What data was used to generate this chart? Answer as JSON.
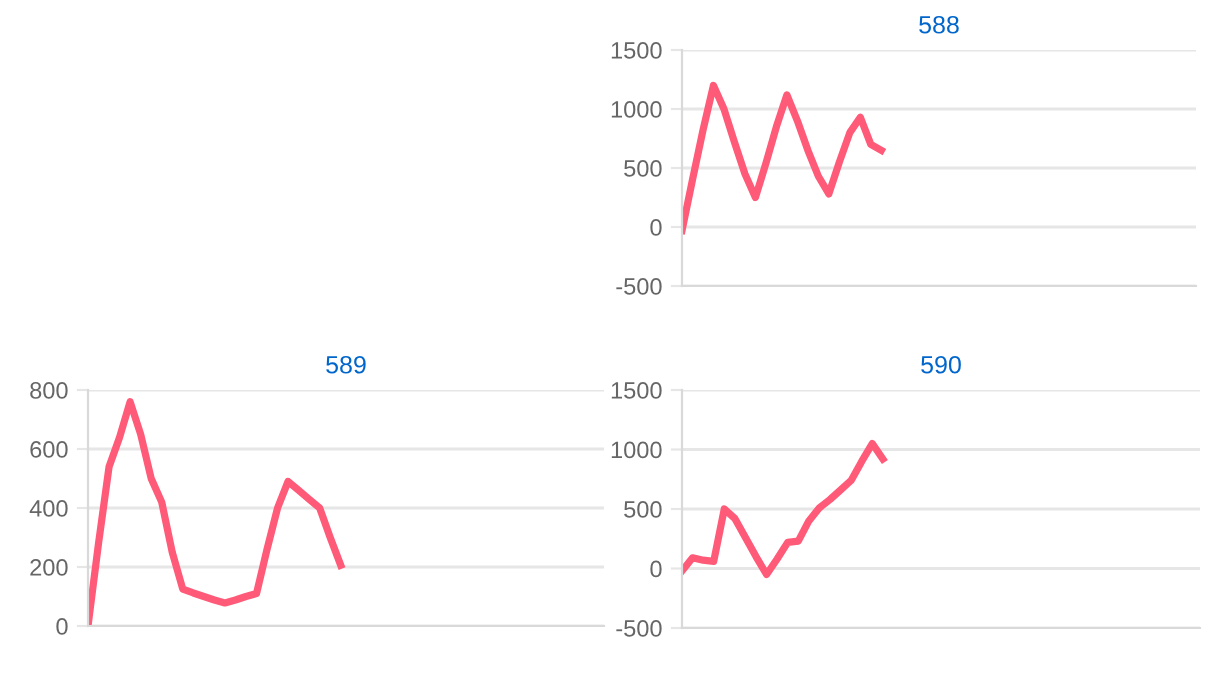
{
  "chart_data": [
    {
      "type": "line",
      "title": "588",
      "categories": [
        null,
        null,
        null,
        null,
        null,
        null,
        null,
        null,
        null,
        null,
        null,
        null,
        null,
        null,
        null,
        null,
        null,
        null,
        null,
        null,
        null,
        null,
        null,
        null,
        null,
        null,
        null,
        null,
        null,
        null,
        null,
        null,
        null,
        null,
        null,
        null,
        null,
        null,
        null,
        null,
        null,
        null,
        null,
        null,
        null,
        null,
        null,
        null,
        null,
        null
      ],
      "series": [
        {
          "color": "#ff5a78",
          "values": [
            -30,
            400,
            820,
            1200,
            1000,
            720,
            450,
            250,
            540,
            850,
            1120,
            900,
            650,
            430,
            280,
            550,
            800,
            930,
            700,
            650,
            null,
            null,
            null,
            null,
            null,
            null,
            null,
            null,
            null,
            null,
            null,
            null,
            null,
            null,
            null,
            null,
            null,
            null,
            null,
            null,
            null,
            null,
            null,
            null,
            null,
            null,
            null,
            null,
            null,
            null
          ]
        }
      ],
      "ylim": [
        -500,
        1500
      ],
      "yticks": [
        -500,
        0,
        500,
        1000,
        1500
      ],
      "grid": "y",
      "marker": "none",
      "line_style": "solid",
      "tick_labels": "y"
    },
    {
      "type": "line",
      "title": "589",
      "categories": [
        null,
        null,
        null,
        null,
        null,
        null,
        null,
        null,
        null,
        null,
        null,
        null,
        null,
        null,
        null,
        null,
        null,
        null,
        null,
        null,
        null,
        null,
        null,
        null,
        null,
        null,
        null,
        null,
        null,
        null,
        null,
        null,
        null,
        null,
        null,
        null,
        null,
        null,
        null,
        null,
        null,
        null,
        null,
        null,
        null,
        null,
        null,
        null,
        null,
        null
      ],
      "series": [
        {
          "color": "#ff5a78",
          "values": [
            0,
            280,
            540,
            640,
            760,
            650,
            500,
            420,
            250,
            125,
            112,
            100,
            88,
            78,
            88,
            100,
            110,
            260,
            400,
            490,
            460,
            430,
            400,
            300,
            206,
            null,
            null,
            null,
            null,
            null,
            null,
            null,
            null,
            null,
            null,
            null,
            null,
            null,
            null,
            null,
            null,
            null,
            null,
            null,
            null,
            null,
            null,
            null,
            null,
            null
          ]
        }
      ],
      "ylim": [
        0,
        800
      ],
      "yticks": [
        0,
        200,
        400,
        600,
        800
      ],
      "grid": "y",
      "marker": "none",
      "line_style": "solid",
      "tick_labels": "y"
    },
    {
      "type": "line",
      "title": "590",
      "categories": [
        null,
        null,
        null,
        null,
        null,
        null,
        null,
        null,
        null,
        null,
        null,
        null,
        null,
        null,
        null,
        null,
        null,
        null,
        null,
        null,
        null,
        null,
        null,
        null,
        null,
        null,
        null,
        null,
        null,
        null,
        null,
        null,
        null,
        null,
        null,
        null,
        null,
        null,
        null,
        null,
        null,
        null,
        null,
        null,
        null,
        null,
        null,
        null,
        null,
        null
      ],
      "series": [
        {
          "color": "#ff5a78",
          "values": [
            -20,
            90,
            70,
            60,
            500,
            420,
            260,
            100,
            -50,
            80,
            220,
            230,
            400,
            510,
            580,
            660,
            740,
            900,
            1050,
            920,
            null,
            null,
            null,
            null,
            null,
            null,
            null,
            null,
            null,
            null,
            null,
            null,
            null,
            null,
            null,
            null,
            null,
            null,
            null,
            null,
            null,
            null,
            null,
            null,
            null,
            null,
            null,
            null,
            null,
            null
          ]
        }
      ],
      "ylim": [
        -500,
        1500
      ],
      "yticks": [
        -500,
        0,
        500,
        1000,
        1500
      ],
      "grid": "y",
      "marker": "none",
      "line_style": "solid",
      "tick_labels": "y"
    }
  ]
}
